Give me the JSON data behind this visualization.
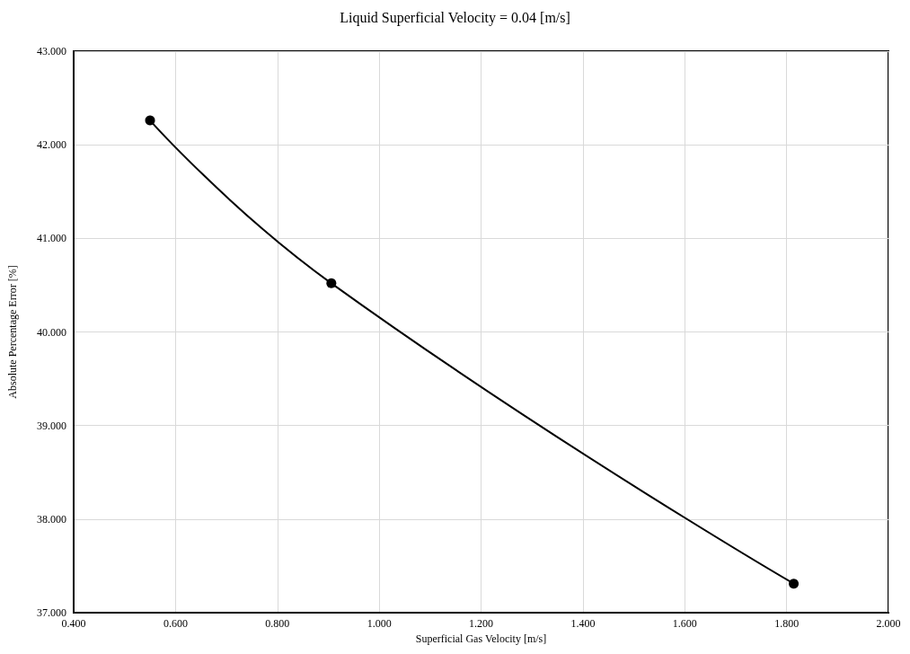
{
  "chart_data": {
    "type": "line",
    "title": "Liquid Superficial Velocity = 0.04 [m/s]",
    "xlabel": "Superficial Gas Velocity [m/s]",
    "ylabel": "Absolute Percentage Error [%]",
    "x": [
      0.55,
      0.906,
      1.814
    ],
    "series": [
      {
        "color": "#000000",
        "values": [
          42.26,
          40.52,
          37.31
        ]
      }
    ],
    "xlim": [
      0.4,
      2.0
    ],
    "xticks": [
      {
        "value": 0.4,
        "label": "0.400"
      },
      {
        "value": 0.6,
        "label": "0.600"
      },
      {
        "value": 0.8,
        "label": "0.800"
      },
      {
        "value": 1.0,
        "label": "1.000"
      },
      {
        "value": 1.2,
        "label": "1.200"
      },
      {
        "value": 1.4,
        "label": "1.400"
      },
      {
        "value": 1.6,
        "label": "1.600"
      },
      {
        "value": 1.8,
        "label": "1.800"
      },
      {
        "value": 2.0,
        "label": "2.000"
      }
    ],
    "ylim": [
      37,
      43
    ],
    "yticks": [
      {
        "value": 37,
        "label": "37.000"
      },
      {
        "value": 38,
        "label": "38.000"
      },
      {
        "value": 39,
        "label": "39.000"
      },
      {
        "value": 40,
        "label": "40.000"
      },
      {
        "value": 41,
        "label": "41.000"
      },
      {
        "value": 42,
        "label": "42.000"
      },
      {
        "value": 43,
        "label": "43.000"
      }
    ],
    "grid": true,
    "marker": "circle",
    "line_style": "solid"
  }
}
